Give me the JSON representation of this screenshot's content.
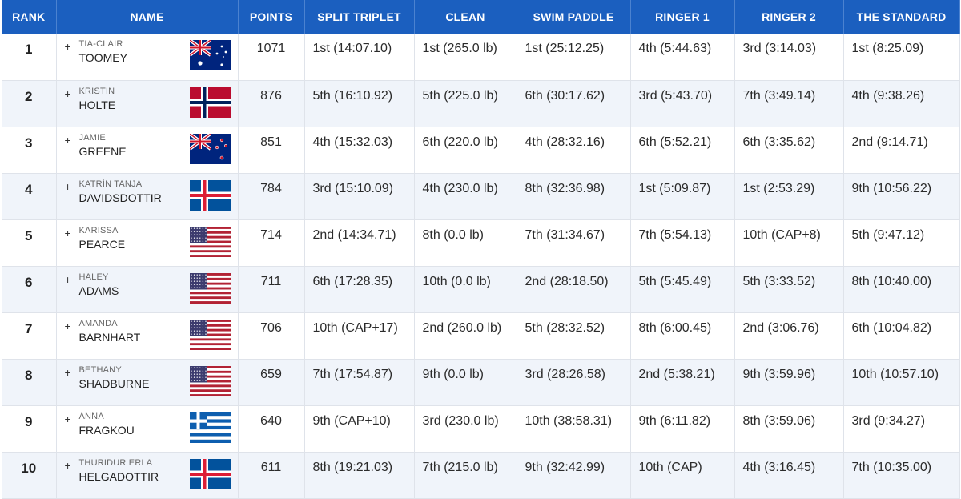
{
  "headers": [
    "RANK",
    "NAME",
    "POINTS",
    "SPLIT TRIPLET",
    "CLEAN",
    "SWIM PADDLE",
    "RINGER 1",
    "RINGER 2",
    "THE STANDARD"
  ],
  "expand_symbol": "+",
  "rows": [
    {
      "rank": "1",
      "first": "TIA-CLAIR",
      "last": "TOOMEY",
      "flag": "australia-flag-icon",
      "points": "1071",
      "split": "1st (14:07.10)",
      "clean": "1st (265.0 lb)",
      "swim": "1st (25:12.25)",
      "ringer1": "4th (5:44.63)",
      "ringer2": "3rd (3:14.03)",
      "standard": "1st (8:25.09)"
    },
    {
      "rank": "2",
      "first": "KRISTIN",
      "last": "HOLTE",
      "flag": "norway-flag-icon",
      "points": "876",
      "split": "5th (16:10.92)",
      "clean": "5th (225.0 lb)",
      "swim": "6th (30:17.62)",
      "ringer1": "3rd (5:43.70)",
      "ringer2": "7th (3:49.14)",
      "standard": "4th (9:38.26)"
    },
    {
      "rank": "3",
      "first": "JAMIE",
      "last": "GREENE",
      "flag": "new-zealand-flag-icon",
      "points": "851",
      "split": "4th (15:32.03)",
      "clean": "6th (220.0 lb)",
      "swim": "4th (28:32.16)",
      "ringer1": "6th (5:52.21)",
      "ringer2": "6th (3:35.62)",
      "standard": "2nd (9:14.71)"
    },
    {
      "rank": "4",
      "first": "KATRÍN TANJA",
      "last": "DAVIDSDOTTIR",
      "flag": "iceland-flag-icon",
      "points": "784",
      "split": "3rd (15:10.09)",
      "clean": "4th (230.0 lb)",
      "swim": "8th (32:36.98)",
      "ringer1": "1st (5:09.87)",
      "ringer2": "1st (2:53.29)",
      "standard": "9th (10:56.22)"
    },
    {
      "rank": "5",
      "first": "KARISSA",
      "last": "PEARCE",
      "flag": "usa-flag-icon",
      "points": "714",
      "split": "2nd (14:34.71)",
      "clean": "8th (0.0 lb)",
      "swim": "7th (31:34.67)",
      "ringer1": "7th (5:54.13)",
      "ringer2": "10th (CAP+8)",
      "standard": "5th (9:47.12)"
    },
    {
      "rank": "6",
      "first": "HALEY",
      "last": "ADAMS",
      "flag": "usa-flag-icon",
      "points": "711",
      "split": "6th (17:28.35)",
      "clean": "10th (0.0 lb)",
      "swim": "2nd (28:18.50)",
      "ringer1": "5th (5:45.49)",
      "ringer2": "5th (3:33.52)",
      "standard": "8th (10:40.00)"
    },
    {
      "rank": "7",
      "first": "AMANDA",
      "last": "BARNHART",
      "flag": "usa-flag-icon",
      "points": "706",
      "split": "10th (CAP+17)",
      "clean": "2nd (260.0 lb)",
      "swim": "5th (28:32.52)",
      "ringer1": "8th (6:00.45)",
      "ringer2": "2nd (3:06.76)",
      "standard": "6th (10:04.82)"
    },
    {
      "rank": "8",
      "first": "BETHANY",
      "last": "SHADBURNE",
      "flag": "usa-flag-icon",
      "points": "659",
      "split": "7th (17:54.87)",
      "clean": "9th (0.0 lb)",
      "swim": "3rd (28:26.58)",
      "ringer1": "2nd (5:38.21)",
      "ringer2": "9th (3:59.96)",
      "standard": "10th (10:57.10)"
    },
    {
      "rank": "9",
      "first": "ANNA",
      "last": "FRAGKOU",
      "flag": "greece-flag-icon",
      "points": "640",
      "split": "9th (CAP+10)",
      "clean": "3rd (230.0 lb)",
      "swim": "10th (38:58.31)",
      "ringer1": "9th (6:11.82)",
      "ringer2": "8th (3:59.06)",
      "standard": "3rd (9:34.27)"
    },
    {
      "rank": "10",
      "first": "THURIDUR ERLA",
      "last": "HELGADOTTIR",
      "flag": "iceland-flag-icon",
      "points": "611",
      "split": "8th (19:21.03)",
      "clean": "7th (215.0 lb)",
      "swim": "9th (32:42.99)",
      "ringer1": "10th (CAP)",
      "ringer2": "4th (3:16.45)",
      "standard": "7th (10:35.00)"
    }
  ]
}
